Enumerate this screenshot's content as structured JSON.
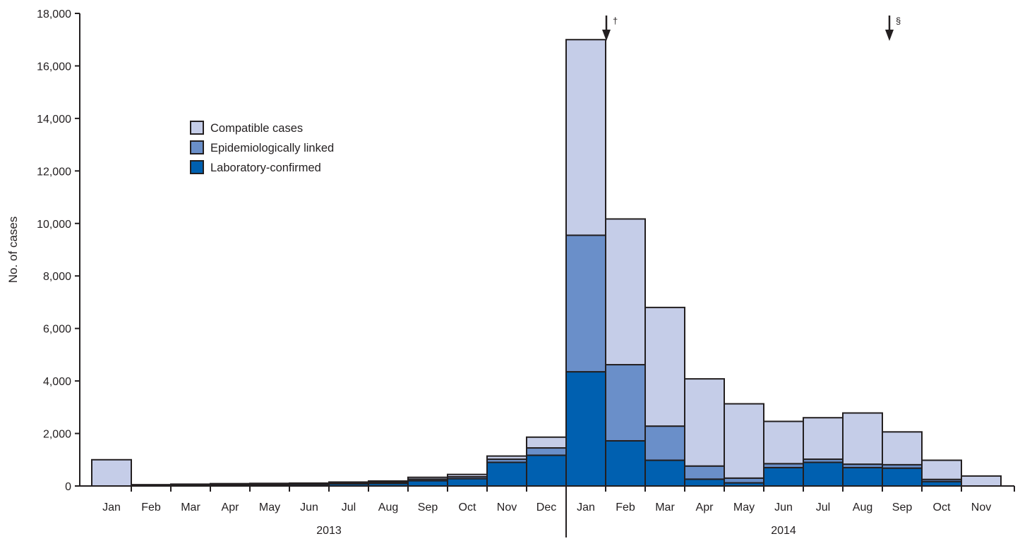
{
  "chart_data": {
    "type": "bar",
    "stacked": true,
    "ylabel": "No. of cases",
    "ylim": [
      0,
      18000
    ],
    "yticks": [
      0,
      2000,
      4000,
      6000,
      8000,
      10000,
      12000,
      14000,
      16000,
      18000
    ],
    "ytick_labels": [
      "0",
      "2,000",
      "4,000",
      "6,000",
      "8,000",
      "10,000",
      "12,000",
      "14,000",
      "16,000",
      "18,000"
    ],
    "categories": [
      "Jan",
      "Feb",
      "Mar",
      "Apr",
      "May",
      "Jun",
      "Jul",
      "Aug",
      "Sep",
      "Oct",
      "Nov",
      "Dec",
      "Jan",
      "Feb",
      "Mar",
      "Apr",
      "May",
      "Jun",
      "Jul",
      "Aug",
      "Sep",
      "Oct",
      "Nov"
    ],
    "year_groups": [
      {
        "label": "2013",
        "start": 0,
        "count": 12
      },
      {
        "label": "2014",
        "start": 12,
        "count": 11
      }
    ],
    "series": [
      {
        "name": "Laboratory-confirmed",
        "color": "#0060b0",
        "values": [
          0,
          20,
          30,
          40,
          50,
          60,
          80,
          100,
          200,
          280,
          900,
          1170,
          4350,
          1720,
          980,
          260,
          120,
          700,
          900,
          700,
          680,
          170,
          0
        ]
      },
      {
        "name": "Epidemiologically linked",
        "color": "#6a8fc9",
        "values": [
          0,
          10,
          15,
          20,
          20,
          20,
          30,
          40,
          60,
          70,
          120,
          280,
          5200,
          2900,
          1300,
          500,
          180,
          150,
          120,
          130,
          130,
          80,
          0
        ]
      },
      {
        "name": "Compatible cases",
        "color": "#c5cde8",
        "values": [
          1000,
          20,
          25,
          30,
          30,
          30,
          40,
          50,
          70,
          90,
          120,
          410,
          7450,
          5550,
          4520,
          3320,
          2830,
          1610,
          1580,
          1950,
          1250,
          730,
          380
        ]
      }
    ],
    "legend": {
      "placement": "upper-left",
      "order": [
        "Compatible cases",
        "Epidemiologically linked",
        "Laboratory-confirmed"
      ]
    },
    "annotations": [
      {
        "symbol": "†",
        "after_index": 12
      },
      {
        "symbol": "§",
        "at_index": 20
      }
    ],
    "grid": false
  }
}
